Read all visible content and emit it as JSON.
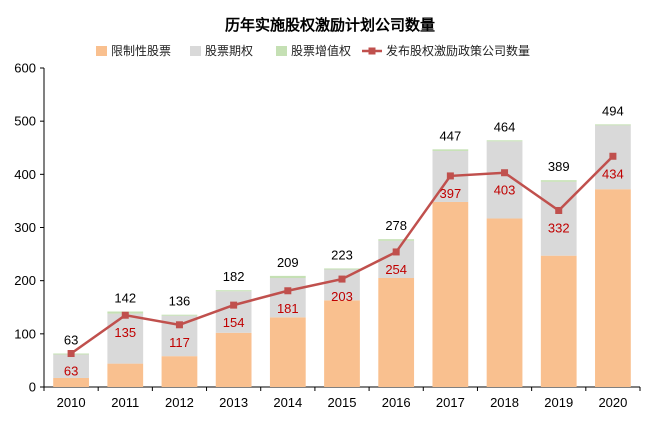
{
  "chart_data": {
    "type": "bar",
    "title": "历年实施股权激励计划公司数量",
    "categories": [
      "2010",
      "2011",
      "2012",
      "2013",
      "2014",
      "2015",
      "2016",
      "2017",
      "2018",
      "2019",
      "2020"
    ],
    "series": [
      {
        "name": "限制性股票",
        "kind": "bar",
        "color": "#f9c08f",
        "values": [
          17,
          44,
          58,
          102,
          131,
          163,
          205,
          348,
          317,
          247,
          372
        ]
      },
      {
        "name": "股票期权",
        "kind": "bar",
        "color": "#d9d9d9",
        "values": [
          44,
          94,
          76,
          78,
          74,
          58,
          70,
          96,
          145,
          139,
          120
        ]
      },
      {
        "name": "股票增值权",
        "kind": "bar",
        "color": "#c5e0b4",
        "values": [
          2,
          4,
          2,
          2,
          4,
          2,
          3,
          3,
          2,
          3,
          2
        ]
      },
      {
        "name": "发布股权激励政策公司数量",
        "kind": "line",
        "color": "#c0504d",
        "values": [
          63,
          135,
          117,
          154,
          181,
          203,
          254,
          397,
          403,
          332,
          434
        ]
      }
    ],
    "totals": [
      63,
      142,
      136,
      182,
      209,
      223,
      278,
      447,
      464,
      389,
      494
    ],
    "ylim": [
      0,
      600
    ],
    "yticks": [
      0,
      100,
      200,
      300,
      400,
      500,
      600
    ],
    "xlabel": "",
    "ylabel": "",
    "legend_position": "top"
  }
}
